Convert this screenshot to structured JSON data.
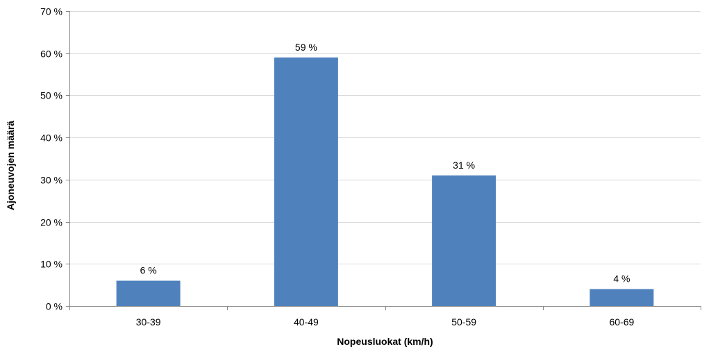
{
  "chart_data": {
    "type": "bar",
    "categories": [
      "30-39",
      "40-49",
      "50-59",
      "60-69"
    ],
    "values": [
      6,
      59,
      31,
      4
    ],
    "data_labels": [
      "6 %",
      "59 %",
      "31 %",
      "4 %"
    ],
    "title": "",
    "xlabel": "Nopeusluokat (km/h)",
    "ylabel": "Ajoneuvojen määrä",
    "ylim": [
      0,
      70
    ],
    "y_ticks": [
      0,
      10,
      20,
      30,
      40,
      50,
      60,
      70
    ],
    "y_tick_labels": [
      "0 %",
      "10 %",
      "20 %",
      "30 %",
      "40 %",
      "50 %",
      "60 %",
      "70 %"
    ],
    "grid": true,
    "legend": "none",
    "bar_color": "#4f81bd",
    "grid_color": "#d9d9d9",
    "axis_color": "#868686"
  }
}
